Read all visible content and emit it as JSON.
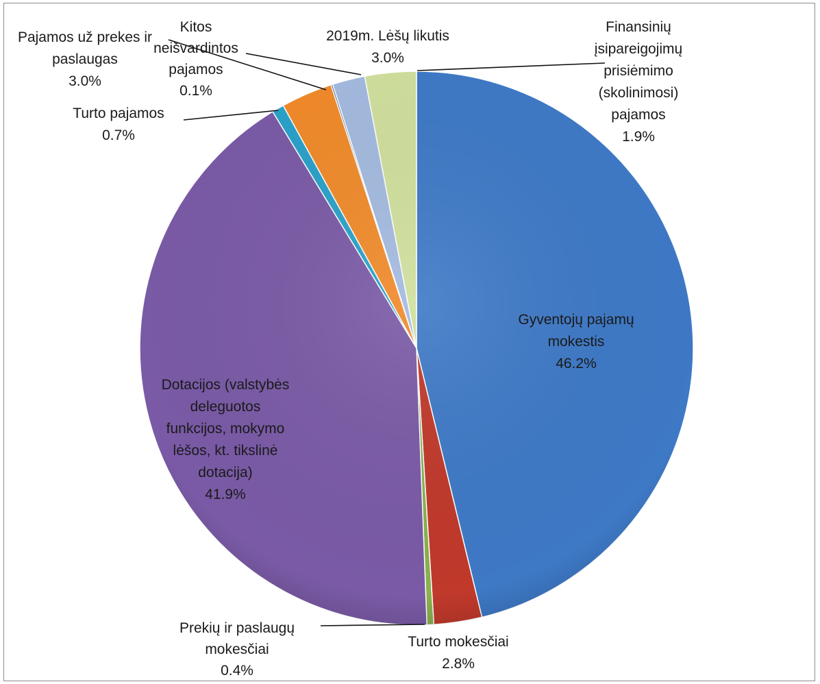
{
  "chart_data": {
    "type": "pie",
    "title": "",
    "start_angle_deg": 0,
    "direction": "clockwise",
    "slices": [
      {
        "name": "Gyventojų pajamų mokestis",
        "value": 46.2,
        "label": "46.2%",
        "color": "#3e79c6"
      },
      {
        "name": "Turto mokesčiai",
        "value": 2.8,
        "label": "2.8%",
        "color": "#c0392b"
      },
      {
        "name": "Prekių ir paslaugų mokesčiai",
        "value": 0.4,
        "label": "0.4%",
        "color": "#8ab04f"
      },
      {
        "name": "Dotacijos (valstybės deleguotos funkcijos, mokymo lėšos, kt. tikslinė dotacija)",
        "value": 41.9,
        "label": "41.9%",
        "color": "#7a5aa6"
      },
      {
        "name": "Turto pajamos",
        "value": 0.7,
        "label": "0.7%",
        "color": "#2aa1c9"
      },
      {
        "name": "Pajamos už prekes ir paslaugas",
        "value": 3.0,
        "label": "3.0%",
        "color": "#f08a2a"
      },
      {
        "name": "Kitos neišvardintos pajamos",
        "value": 0.1,
        "label": "0.1%",
        "color": "#3b5a8c"
      },
      {
        "name": "Finansinių įsipareigojimų prisiėmimo (skolinimosi) pajamos",
        "value": 1.9,
        "label": "1.9%",
        "color": "#a3badf"
      },
      {
        "name": "2019m. Lėšų likutis",
        "value": 3.0,
        "label": "3.0%",
        "color": "#cfdf9c"
      }
    ],
    "label_lines": [
      {
        "slice": 0,
        "lines": [
          "Gyventojų pajamų",
          "mokestis",
          "46.2%"
        ]
      },
      {
        "slice": 1,
        "lines": [
          "Turto mokesčiai",
          "2.8%"
        ]
      },
      {
        "slice": 2,
        "lines": [
          "Prekių ir paslaugų",
          "mokesčiai",
          "0.4%"
        ]
      },
      {
        "slice": 3,
        "lines": [
          "Dotacijos (valstybės",
          "deleguotos",
          "funkcijos, mokymo",
          "lėšos, kt. tikslinė",
          "dotacija)",
          "41.9%"
        ]
      },
      {
        "slice": 4,
        "lines": [
          "Turto pajamos",
          "0.7%"
        ]
      },
      {
        "slice": 5,
        "lines": [
          "Pajamos už prekes ir",
          "paslaugas",
          "3.0%"
        ]
      },
      {
        "slice": 6,
        "lines": [
          "Kitos",
          "neišvardintos",
          "pajamos",
          "0.1%"
        ]
      },
      {
        "slice": 7,
        "lines": [
          "Finansinių",
          "įsipareigojimų",
          "prisiėmimo",
          "(skolinimosi)",
          "pajamos",
          "1.9%"
        ]
      },
      {
        "slice": 8,
        "lines": [
          "2019m. Lėšų likutis",
          "3.0%"
        ]
      }
    ]
  }
}
